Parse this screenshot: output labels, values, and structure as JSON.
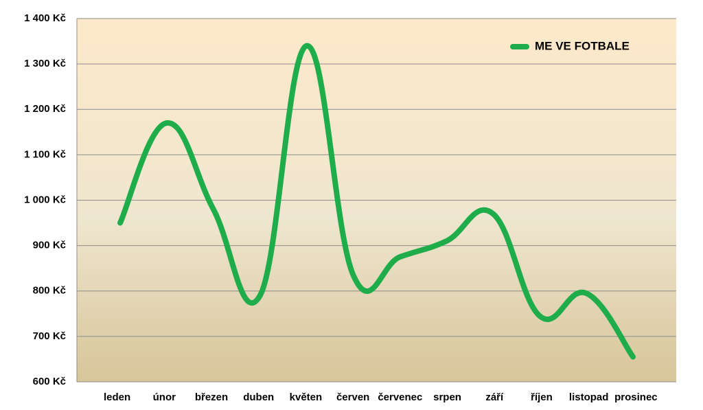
{
  "chart_data": {
    "type": "line",
    "categories": [
      "leden",
      "únor",
      "březen",
      "duben",
      "květen",
      "červen",
      "červenec",
      "srpen",
      "září",
      "říjen",
      "listopad",
      "prosinec"
    ],
    "series": [
      {
        "name": "ME VE FOTBALE",
        "color": "#1fad4c",
        "values": [
          950,
          1170,
          980,
          790,
          1340,
          835,
          875,
          910,
          970,
          745,
          795,
          655
        ]
      }
    ],
    "ylim": [
      600,
      1400
    ],
    "yticks": [
      {
        "value": 600,
        "label": "600 Kč"
      },
      {
        "value": 700,
        "label": "700 Kč"
      },
      {
        "value": 800,
        "label": "800 Kč"
      },
      {
        "value": 900,
        "label": "900 Kč"
      },
      {
        "value": 1000,
        "label": "1 000 Kč"
      },
      {
        "value": 1100,
        "label": "1 100 Kč"
      },
      {
        "value": 1200,
        "label": "1 200 Kč"
      },
      {
        "value": 1300,
        "label": "1 300 Kč"
      },
      {
        "value": 1400,
        "label": "1 400 Kč"
      }
    ],
    "grid": true,
    "smooth": true,
    "legend": "top-right"
  }
}
